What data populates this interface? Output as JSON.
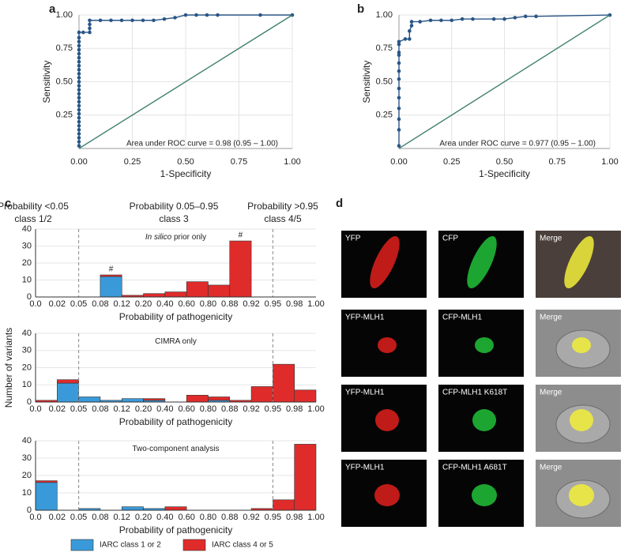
{
  "panel_labels": [
    "a",
    "b",
    "c",
    "d"
  ],
  "chart_data": [
    {
      "type": "line",
      "xlabel": "1-Specificity",
      "ylabel": "Sensitivity",
      "annotation": "Area under ROC curve = 0.98 (0.95 – 1.00)",
      "xlim": [
        0,
        1
      ],
      "ylim": [
        0,
        1
      ],
      "grid": true,
      "xticks": [
        {
          "value": 0,
          "label": "0.00"
        },
        0.25,
        {
          "value": 0.5,
          "label": "0.50"
        },
        0.75,
        {
          "value": 1,
          "label": "1.00"
        }
      ],
      "yticks": [
        0.25,
        {
          "value": 0.5,
          "label": "0.50"
        },
        0.75,
        {
          "value": 1,
          "label": "1.00"
        }
      ],
      "series": [
        {
          "color": "#2a5686",
          "markers": true,
          "x": [
            0,
            0,
            0,
            0,
            0,
            0,
            0,
            0,
            0,
            0,
            0,
            0,
            0,
            0,
            0,
            0,
            0,
            0,
            0,
            0,
            0,
            0,
            0,
            0,
            0,
            0,
            0,
            0,
            0,
            0.02,
            0.05,
            0.05,
            0.05,
            0.05,
            0.1,
            0.15,
            0.2,
            0.25,
            0.3,
            0.35,
            0.4,
            0.45,
            0.5,
            0.55,
            0.6,
            0.65,
            0.85,
            1
          ],
          "values": [
            0.02,
            0.05,
            0.08,
            0.11,
            0.14,
            0.17,
            0.2,
            0.23,
            0.26,
            0.29,
            0.32,
            0.35,
            0.38,
            0.41,
            0.44,
            0.47,
            0.5,
            0.53,
            0.56,
            0.59,
            0.62,
            0.65,
            0.68,
            0.71,
            0.74,
            0.77,
            0.8,
            0.83,
            0.87,
            0.87,
            0.87,
            0.9,
            0.93,
            0.96,
            0.96,
            0.96,
            0.96,
            0.96,
            0.96,
            0.96,
            0.97,
            0.98,
            1,
            1,
            1,
            1,
            1,
            1
          ]
        },
        {
          "color": "#3f7f6e",
          "markers": false,
          "x": [
            0,
            1
          ],
          "values": [
            0,
            1
          ]
        }
      ]
    },
    {
      "type": "line",
      "xlabel": "1-Specificity",
      "ylabel": "Sensitivity",
      "annotation": "Area under ROC curve = 0.977 (0.95 – 1.00)",
      "xlim": [
        0,
        1
      ],
      "ylim": [
        0,
        1
      ],
      "grid": true,
      "xticks": [
        {
          "value": 0,
          "label": "0.00"
        },
        0.25,
        {
          "value": 0.5,
          "label": "0.50"
        },
        0.75,
        {
          "value": 1,
          "label": "1.00"
        }
      ],
      "yticks": [
        0.25,
        {
          "value": 0.5,
          "label": "0.50"
        },
        0.75,
        {
          "value": 1,
          "label": "1.00"
        }
      ],
      "series": [
        {
          "color": "#2a5686",
          "markers": true,
          "x": [
            0,
            0,
            0,
            0,
            0,
            0,
            0,
            0,
            0,
            0,
            0,
            0,
            0,
            0.03,
            0.05,
            0.05,
            0.06,
            0.06,
            0.1,
            0.15,
            0.2,
            0.25,
            0.3,
            0.35,
            0.45,
            0.5,
            0.55,
            0.6,
            0.65,
            1
          ],
          "values": [
            0.02,
            0.14,
            0.22,
            0.3,
            0.38,
            0.45,
            0.52,
            0.58,
            0.64,
            0.7,
            0.72,
            0.78,
            0.8,
            0.82,
            0.82,
            0.88,
            0.92,
            0.95,
            0.95,
            0.96,
            0.96,
            0.96,
            0.97,
            0.97,
            0.97,
            0.97,
            0.98,
            0.99,
            0.99,
            1
          ]
        },
        {
          "color": "#3f7f6e",
          "markers": false,
          "x": [
            0,
            1
          ],
          "values": [
            0,
            1
          ]
        }
      ]
    },
    {
      "type": "histogram",
      "stacked": true,
      "subtitle_italic": "In silico",
      "subtitle": "prior only",
      "xlabel": "Probability of pathogenicity",
      "bins": [
        "0.0",
        "0.02",
        "0.05",
        "0.08",
        "0.12",
        "0.20",
        "0.40",
        "0.60",
        "0.80",
        "0.88",
        "0.92",
        "0.95",
        "0.98",
        "1.00"
      ],
      "ylim": [
        0,
        40
      ],
      "yticks": [
        0,
        10,
        20,
        30,
        40
      ],
      "grid": true,
      "thresholds": [
        0.05,
        0.95
      ],
      "annotations": [
        {
          "text": "#",
          "bin": 3
        },
        {
          "text": "#",
          "bin": 9
        }
      ],
      "series": [
        {
          "name": "IARC class 1 or 2",
          "color": "#3a9ad9",
          "values": [
            0,
            0,
            0,
            12,
            0,
            0,
            0,
            0,
            0,
            0,
            0,
            0,
            0
          ]
        },
        {
          "name": "IARC class 4 or 5",
          "color": "#e02b2b",
          "values": [
            0,
            0,
            0,
            1,
            1,
            2,
            3,
            9,
            7,
            33,
            0,
            0,
            0
          ]
        }
      ]
    },
    {
      "type": "histogram",
      "stacked": true,
      "subtitle": "CIMRA only",
      "xlabel": "Probability of pathogenicity",
      "ylabel": "Number of variants",
      "bins": [
        "0.0",
        "0.02",
        "0.05",
        "0.08",
        "0.12",
        "0.20",
        "0.40",
        "0.60",
        "0.80",
        "0.88",
        "0.92",
        "0.95",
        "0.98",
        "1.00"
      ],
      "ylim": [
        0,
        40
      ],
      "yticks": [
        0,
        10,
        20,
        30,
        40
      ],
      "grid": true,
      "thresholds": [
        0.05,
        0.95
      ],
      "series": [
        {
          "color": "#3a9ad9",
          "values": [
            0,
            11,
            3,
            1,
            2,
            1,
            0,
            0,
            1,
            0,
            0,
            0,
            0
          ]
        },
        {
          "color": "#e02b2b",
          "values": [
            1,
            2,
            0,
            0,
            0,
            1,
            0,
            4,
            2,
            1,
            9,
            22,
            7
          ]
        }
      ]
    },
    {
      "type": "histogram",
      "stacked": true,
      "subtitle": "Two-component analysis",
      "xlabel": "Probability of pathogenicity",
      "bins": [
        "0.0",
        "0.02",
        "0.05",
        "0.08",
        "0.12",
        "0.20",
        "0.40",
        "0.60",
        "0.80",
        "0.88",
        "0.92",
        "0.95",
        "0.98",
        "1.00"
      ],
      "ylim": [
        0,
        40
      ],
      "yticks": [
        0,
        10,
        20,
        30,
        40
      ],
      "grid": true,
      "thresholds": [
        0.05,
        0.95
      ],
      "series": [
        {
          "color": "#3a9ad9",
          "values": [
            16,
            0,
            1,
            0,
            2,
            1,
            0,
            0,
            0,
            0,
            0,
            0,
            0
          ]
        },
        {
          "color": "#e02b2b",
          "values": [
            1,
            0,
            0,
            0,
            0,
            0,
            2,
            0,
            0,
            0,
            1,
            6,
            38
          ]
        }
      ]
    }
  ],
  "panel_c": {
    "headers": [
      [
        "Probability <0.05",
        "class 1/2"
      ],
      [
        "Probability 0.05–0.95",
        "class 3"
      ],
      [
        "Probability >0.95",
        "class 4/5"
      ]
    ]
  },
  "panel_d": {
    "rows": [
      [
        "YFP",
        "CFP",
        "Merge"
      ],
      [
        "YFP-MLH1",
        "CFP-MLH1",
        "Merge"
      ],
      [
        "YFP-MLH1",
        "CFP-MLH1 K618T",
        "Merge"
      ],
      [
        "YFP-MLH1",
        "CFP-MLH1 A681T",
        "Merge"
      ]
    ]
  }
}
